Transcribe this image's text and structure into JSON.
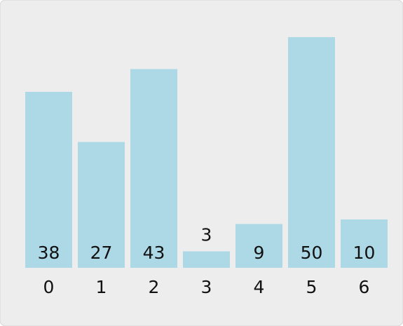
{
  "chart_data": {
    "type": "bar",
    "categories": [
      "0",
      "1",
      "2",
      "3",
      "4",
      "5",
      "6"
    ],
    "values": [
      38,
      27,
      43,
      3,
      9,
      50,
      10
    ],
    "color": "#add8e6"
  }
}
